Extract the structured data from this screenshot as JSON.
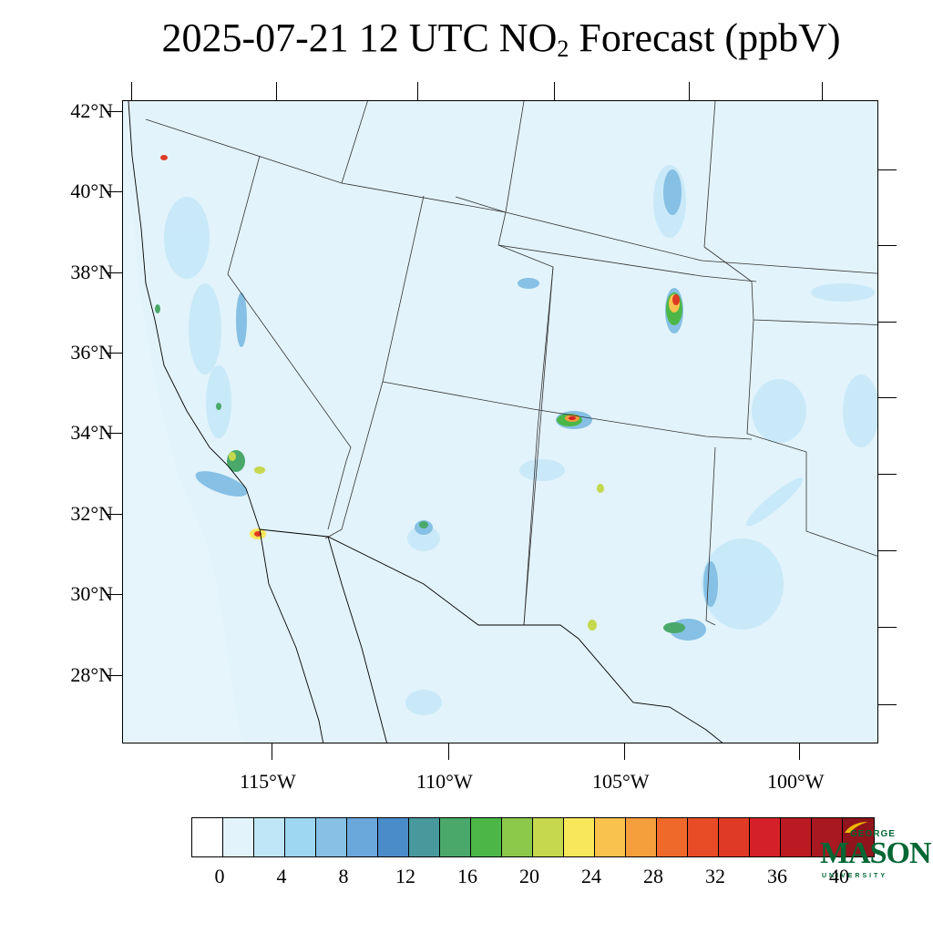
{
  "title": {
    "prefix": "2025-07-21 12 UTC NO",
    "subscript": "2",
    "suffix": " Forecast (ppbV)"
  },
  "map": {
    "lat_labels": [
      "42°N",
      "40°N",
      "38°N",
      "36°N",
      "34°N",
      "32°N",
      "30°N",
      "28°N"
    ],
    "lon_labels": [
      "115°W",
      "110°W",
      "105°W",
      "100°W"
    ],
    "background_color": "#e2f3fb"
  },
  "colorbar": {
    "labels": [
      "0",
      "4",
      "8",
      "12",
      "16",
      "20",
      "24",
      "28",
      "32",
      "36",
      "40"
    ],
    "colors": [
      "#ffffff",
      "#e2f3fb",
      "#bfe6f6",
      "#9dd7f2",
      "#86c0e4",
      "#6aa8dc",
      "#4a8bc9",
      "#48999c",
      "#4aa96a",
      "#4cb747",
      "#8cc84a",
      "#c5d84e",
      "#f8e75a",
      "#f8c24c",
      "#f59e3c",
      "#ef6a2a",
      "#e84c26",
      "#df3a26",
      "#d42028",
      "#bb1a22",
      "#a81820",
      "#8f141c"
    ]
  },
  "logo": {
    "line1": "GEORGE",
    "line2": "MASON",
    "line3": "UNIVERSITY"
  }
}
